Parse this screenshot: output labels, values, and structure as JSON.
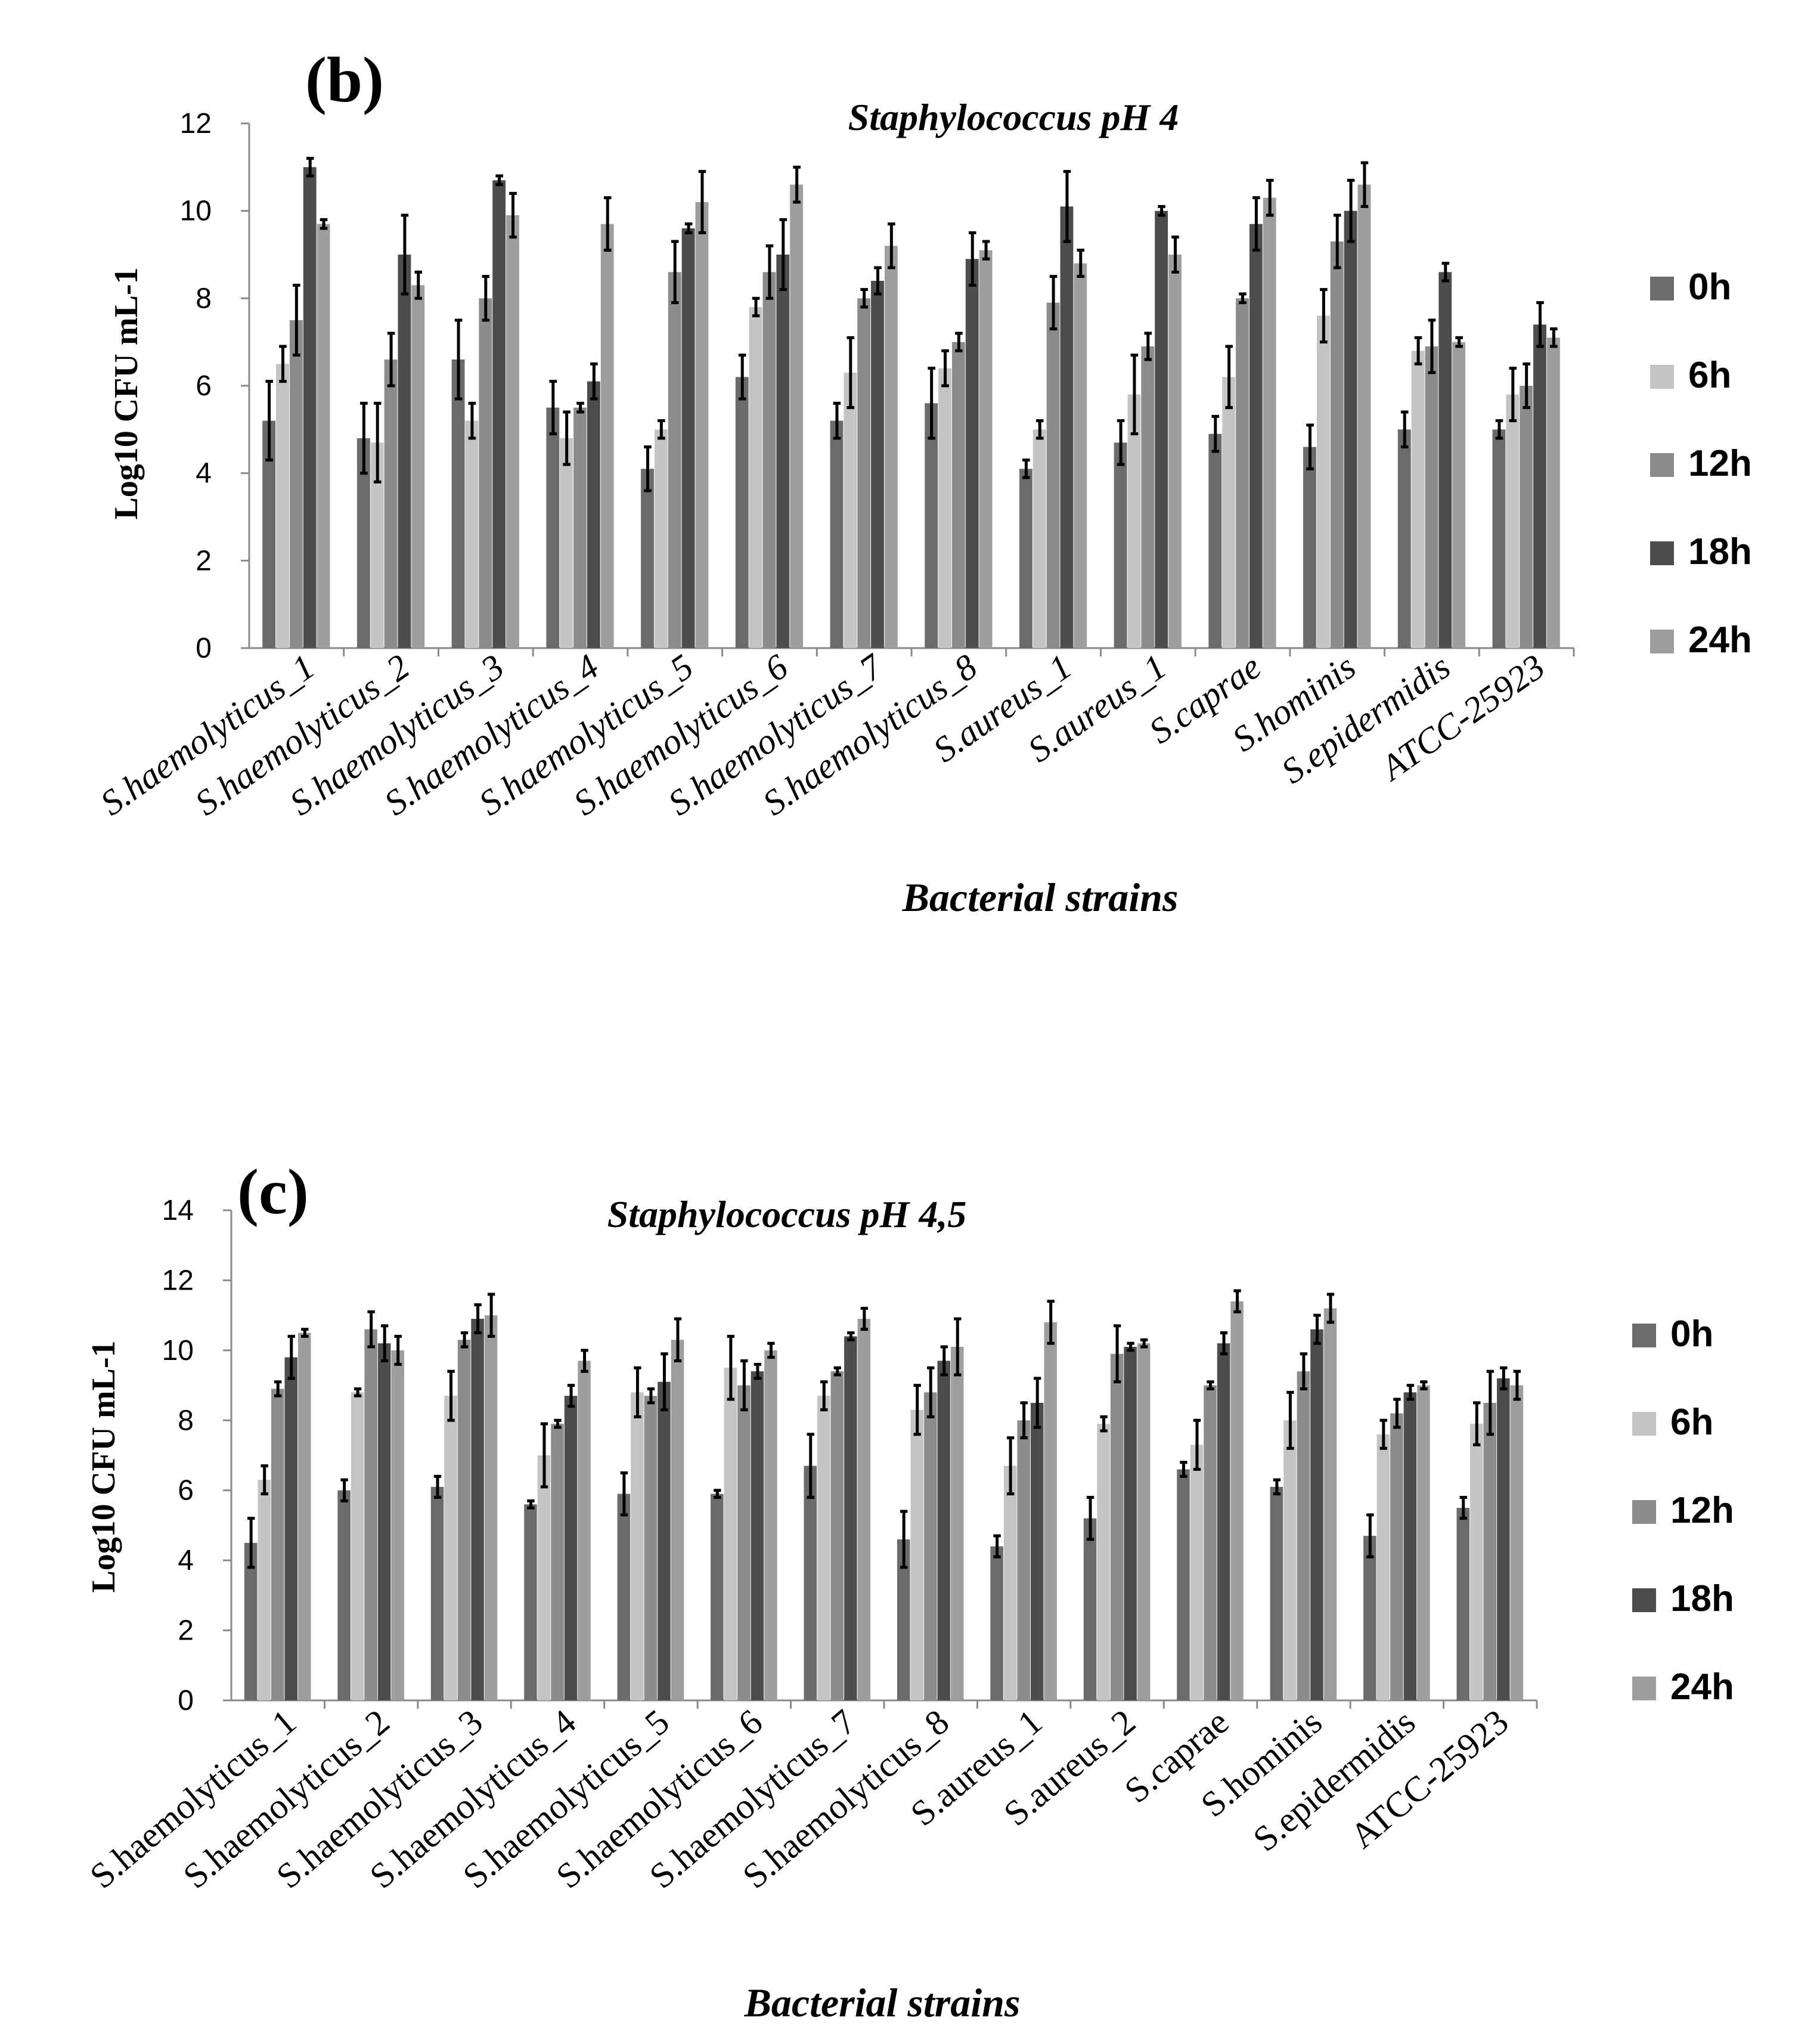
{
  "chart_data": [
    {
      "type": "bar",
      "panel_label": "(b)",
      "title": "Staphylococcus pH 4",
      "xlabel": "Bacterial strains",
      "ylabel": "Log10 CFU mL-1",
      "ylim": [
        0,
        12
      ],
      "yticks": [
        0,
        2,
        4,
        6,
        8,
        10,
        12
      ],
      "legend_position": "right",
      "categories": [
        "S.haemolyticus_1",
        "S.haemolyticus_2",
        "S.haemolyticus_3",
        "S.haemolyticus_4",
        "S.haemolyticus_5",
        "S.haemolyticus_6",
        "S.haemolyticus_7",
        "S.haemolyticus_8",
        "S.aureus_1",
        "S.aureus_1",
        "S.caprae",
        "S.hominis",
        "S.epidermidis",
        "ATCC-25923"
      ],
      "series": [
        {
          "name": "0h",
          "color": "#6b6b6b",
          "values": [
            5.2,
            4.8,
            6.6,
            5.5,
            4.1,
            6.2,
            5.2,
            5.6,
            4.1,
            4.7,
            4.9,
            4.6,
            5.0,
            5.0
          ],
          "errors": [
            0.9,
            0.8,
            0.9,
            0.6,
            0.5,
            0.5,
            0.4,
            0.8,
            0.2,
            0.5,
            0.4,
            0.5,
            0.4,
            0.2
          ]
        },
        {
          "name": "6h",
          "color": "#c4c4c4",
          "values": [
            6.5,
            4.7,
            5.2,
            4.8,
            5.0,
            7.8,
            6.3,
            6.4,
            5.0,
            5.8,
            6.2,
            7.6,
            6.8,
            5.8
          ]
        },
        {
          "name": "12h",
          "color": "#8c8c8c",
          "values": [
            7.5,
            6.6,
            8.0,
            5.5,
            8.6,
            8.6,
            8.0,
            7.0,
            7.9,
            6.9,
            8.0,
            9.3,
            6.9,
            6.0
          ]
        },
        {
          "name": "18h",
          "color": "#4d4d4d",
          "values": [
            11.0,
            9.0,
            10.7,
            6.1,
            9.6,
            9.0,
            8.4,
            8.9,
            10.1,
            10.0,
            9.7,
            10.0,
            8.6,
            7.4
          ]
        },
        {
          "name": "24h",
          "color": "#9e9e9e",
          "values": [
            9.7,
            8.3,
            9.9,
            9.7,
            10.2,
            10.6,
            9.2,
            9.1,
            8.8,
            9.0,
            10.3,
            10.6,
            7.0,
            7.1
          ]
        }
      ],
      "error_bars": [
        [
          0.9,
          0.4,
          0.8,
          0.2,
          0.1
        ],
        [
          0.8,
          0.9,
          0.6,
          0.9,
          0.3
        ],
        [
          0.9,
          0.4,
          0.5,
          0.1,
          0.5
        ],
        [
          0.6,
          0.6,
          0.1,
          0.4,
          0.6
        ],
        [
          0.5,
          0.2,
          0.7,
          0.1,
          0.7
        ],
        [
          0.5,
          0.2,
          0.6,
          0.8,
          0.4
        ],
        [
          0.4,
          0.8,
          0.2,
          0.3,
          0.5
        ],
        [
          0.8,
          0.4,
          0.2,
          0.6,
          0.2
        ],
        [
          0.2,
          0.2,
          0.6,
          0.8,
          0.3
        ],
        [
          0.5,
          0.9,
          0.3,
          0.1,
          0.4
        ],
        [
          0.4,
          0.7,
          0.1,
          0.6,
          0.4
        ],
        [
          0.5,
          0.6,
          0.6,
          0.7,
          0.5
        ],
        [
          0.4,
          0.3,
          0.6,
          0.2,
          0.1
        ],
        [
          0.2,
          0.6,
          0.5,
          0.5,
          0.2
        ]
      ]
    },
    {
      "type": "bar",
      "panel_label": "(c)",
      "title": "Staphylococcus pH 4,5",
      "xlabel": "Bacterial strains",
      "ylabel": "Log10 CFU mL-1",
      "ylim": [
        0,
        14
      ],
      "yticks": [
        0,
        2,
        4,
        6,
        8,
        10,
        12,
        14
      ],
      "legend_position": "right",
      "categories": [
        "S.haemolyticus_1",
        "S.haemolyticus_2",
        "S.haemolyticus_3",
        "S.haemolyticus_4",
        "S.haemolyticus_5",
        "S.haemolyticus_6",
        "S.haemolyticus_7",
        "S.haemolyticus_8",
        "S.aureus_1",
        "S.aureus_2",
        "S.caprae",
        "S.hominis",
        "S.epidermidis",
        "ATCC-25923"
      ],
      "series": [
        {
          "name": "0h",
          "color": "#6b6b6b",
          "values": [
            4.5,
            6.0,
            6.1,
            5.6,
            5.9,
            5.9,
            6.7,
            4.6,
            4.4,
            5.2,
            6.6,
            6.1,
            4.7,
            5.5
          ]
        },
        {
          "name": "6h",
          "color": "#c4c4c4",
          "values": [
            6.3,
            8.8,
            8.7,
            7.0,
            8.8,
            9.5,
            8.7,
            8.3,
            6.7,
            7.9,
            7.3,
            8.0,
            7.6,
            7.9
          ]
        },
        {
          "name": "12h",
          "color": "#8c8c8c",
          "values": [
            8.9,
            10.6,
            10.3,
            7.9,
            8.7,
            9.0,
            9.4,
            8.8,
            8.0,
            9.9,
            9.0,
            9.4,
            8.2,
            8.5
          ]
        },
        {
          "name": "18h",
          "color": "#4d4d4d",
          "values": [
            9.8,
            10.2,
            10.9,
            8.7,
            9.1,
            9.4,
            10.4,
            9.7,
            8.5,
            10.1,
            10.2,
            10.6,
            8.8,
            9.2
          ]
        },
        {
          "name": "24h",
          "color": "#9e9e9e",
          "values": [
            10.5,
            10.0,
            11.0,
            9.7,
            10.3,
            10.0,
            10.9,
            10.1,
            10.8,
            10.2,
            11.4,
            11.2,
            9.0,
            9.0
          ]
        }
      ],
      "error_bars": [
        [
          0.7,
          0.4,
          0.2,
          0.6,
          0.1
        ],
        [
          0.3,
          0.1,
          0.5,
          0.5,
          0.4
        ],
        [
          0.3,
          0.7,
          0.2,
          0.4,
          0.6
        ],
        [
          0.1,
          0.9,
          0.1,
          0.3,
          0.3
        ],
        [
          0.6,
          0.7,
          0.2,
          0.8,
          0.6
        ],
        [
          0.1,
          0.9,
          0.7,
          0.2,
          0.2
        ],
        [
          0.9,
          0.4,
          0.1,
          0.1,
          0.3
        ],
        [
          0.8,
          0.7,
          0.7,
          0.4,
          0.8
        ],
        [
          0.3,
          0.8,
          0.5,
          0.7,
          0.6
        ],
        [
          0.6,
          0.2,
          0.8,
          0.1,
          0.1
        ],
        [
          0.2,
          0.7,
          0.1,
          0.3,
          0.3
        ],
        [
          0.2,
          0.8,
          0.5,
          0.4,
          0.4
        ],
        [
          0.6,
          0.4,
          0.4,
          0.2,
          0.1
        ],
        [
          0.3,
          0.6,
          0.9,
          0.3,
          0.4
        ]
      ]
    }
  ]
}
